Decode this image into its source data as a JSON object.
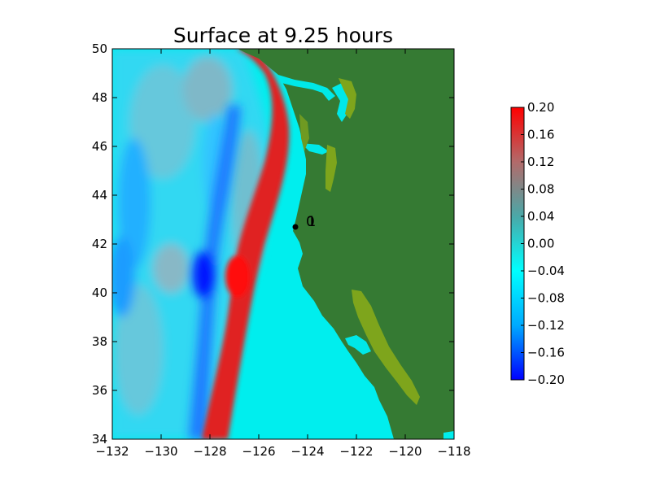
{
  "title": "Surface at 9.25 hours",
  "chart_data": {
    "type": "heatmap",
    "title": "Surface at 9.25 hours",
    "xlabel": "",
    "ylabel": "",
    "xlim": [
      -132,
      -118
    ],
    "ylim": [
      34,
      50
    ],
    "x_ticks": [
      -132,
      -130,
      -128,
      -126,
      -124,
      -122,
      -120,
      -118
    ],
    "y_ticks": [
      34,
      36,
      38,
      40,
      42,
      44,
      46,
      48,
      50
    ],
    "x_tick_labels": [
      "−132",
      "−130",
      "−128",
      "−126",
      "−124",
      "−122",
      "−120",
      "−118"
    ],
    "y_tick_labels": [
      "34",
      "36",
      "38",
      "40",
      "42",
      "44",
      "46",
      "48",
      "50"
    ],
    "colorbar": {
      "min": -0.2,
      "max": 0.2,
      "ticks": [
        0.2,
        0.16,
        0.12,
        0.08,
        0.04,
        0.0,
        -0.04,
        -0.08,
        -0.12,
        -0.16,
        -0.2
      ],
      "tick_labels": [
        "0.20",
        "0.16",
        "0.12",
        "0.08",
        "0.04",
        "0.00",
        "−0.04",
        "−0.08",
        "−0.12",
        "−0.16",
        "−0.20"
      ],
      "colors": [
        "#ff0000",
        "#b26a6a",
        "#4aa8a8",
        "#00ffff",
        "#00aaff",
        "#0000ff"
      ]
    },
    "land_color": "#357a33",
    "shallow_land_color": "#7ea51c",
    "ocean_base_color": "#00f0f0",
    "markers": [
      {
        "name": "gauge",
        "lon": -124.5,
        "lat": 42.7,
        "labels": [
          "0",
          "1"
        ]
      }
    ]
  }
}
